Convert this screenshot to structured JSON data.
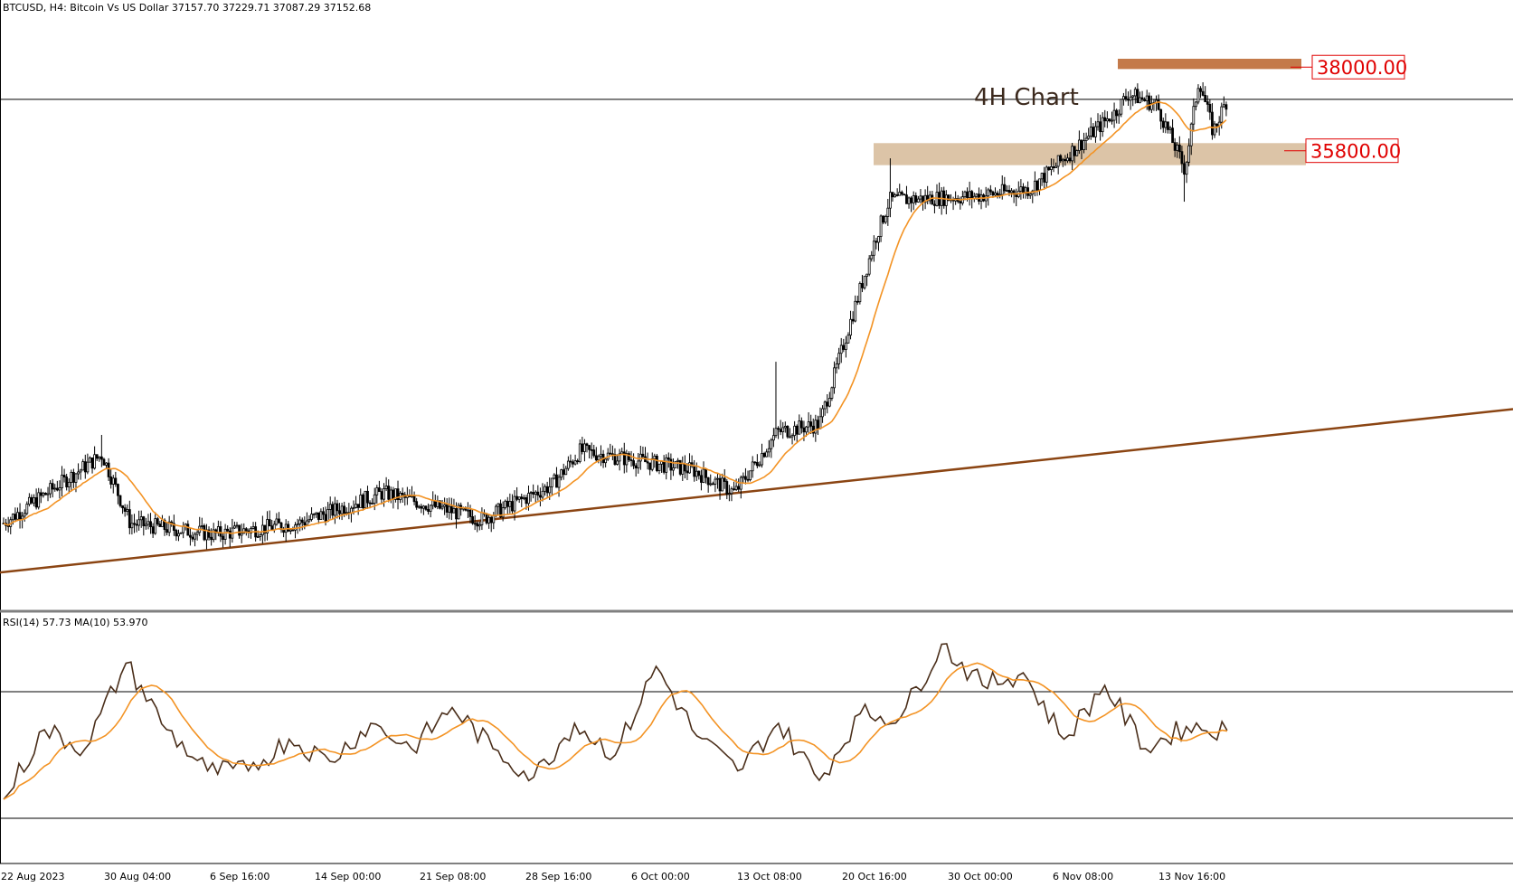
{
  "header": {
    "symbol": "BTCUSD",
    "timeframe": "H4",
    "description": "Bitcoin Vs US Dollar",
    "ohlc": "37157.70 37229.71 37087.29 37152.68",
    "text": "BTCUSD, H4:  Bitcoin Vs US Dollar  37157.70 37229.71 37087.29 37152.68"
  },
  "annotation": {
    "label": "4H Chart"
  },
  "levels": [
    {
      "label": "38000.00",
      "value": 38000,
      "role": "resistance",
      "color": "#c47a4a"
    },
    {
      "label": "35800.00",
      "value": 35800,
      "role": "support",
      "color": "#dcc4a7"
    }
  ],
  "rsi_header": {
    "text": "RSI(14) 57.73 MA(10) 53.970",
    "rsi": 57.73,
    "ma": 53.97
  },
  "time_labels": [
    "22 Aug 2023",
    "30 Aug 04:00",
    "6 Sep 16:00",
    "14 Sep 00:00",
    "21 Sep 08:00",
    "28 Sep 16:00",
    "6 Oct 00:00",
    "13 Oct 08:00",
    "20 Oct 16:00",
    "30 Oct 00:00",
    "6 Nov 08:00",
    "13 Nov 16:00"
  ],
  "colors": {
    "candle": "#000000",
    "ma_line": "#f39324",
    "trendline": "#8b4513",
    "rsi_line": "#4a2e1a",
    "resistance_zone": "#c47a4a",
    "support_zone": "#dcc4a7",
    "label_text": "#e00000"
  },
  "chart_data": [
    {
      "type": "candlestick",
      "title": "BTCUSD, H4: Bitcoin Vs US Dollar",
      "ma_period_note": "moving average overlay (orange)",
      "anchors": [
        {
          "date": "2023-08-22",
          "close": 26000
        },
        {
          "date": "2023-08-29",
          "close": 27800
        },
        {
          "date": "2023-08-31",
          "close": 26000
        },
        {
          "date": "2023-09-06",
          "close": 25700
        },
        {
          "date": "2023-09-12",
          "close": 26000
        },
        {
          "date": "2023-09-18",
          "close": 26800
        },
        {
          "date": "2023-09-25",
          "close": 26100
        },
        {
          "date": "2023-09-30",
          "close": 27000
        },
        {
          "date": "2023-10-02",
          "close": 27900
        },
        {
          "date": "2023-10-10",
          "close": 27400
        },
        {
          "date": "2023-10-13",
          "close": 26800
        },
        {
          "date": "2023-10-16",
          "close": 28400
        },
        {
          "date": "2023-10-19",
          "close": 28600
        },
        {
          "date": "2023-10-20",
          "close": 29800
        },
        {
          "date": "2023-10-23",
          "close": 33500
        },
        {
          "date": "2023-10-24",
          "close": 34500
        },
        {
          "date": "2023-10-30",
          "close": 34600
        },
        {
          "date": "2023-11-03",
          "close": 34800
        },
        {
          "date": "2023-11-09",
          "close": 36800
        },
        {
          "date": "2023-11-10",
          "close": 37300
        },
        {
          "date": "2023-11-12",
          "close": 37000
        },
        {
          "date": "2023-11-14",
          "close": 35300
        },
        {
          "date": "2023-11-15",
          "close": 37700
        },
        {
          "date": "2023-11-16",
          "close": 36300
        },
        {
          "date": "2023-11-17",
          "close": 37152.68
        }
      ],
      "levels": [
        38000,
        35800
      ],
      "trendline": [
        {
          "date": "2023-08-22",
          "value": 24700
        },
        {
          "date": "2023-11-25",
          "value": 29000
        }
      ],
      "ylim": [
        24300,
        39100
      ]
    },
    {
      "type": "line",
      "title": "RSI(14) 57.73 MA(10) 53.970",
      "series": [
        {
          "name": "RSI(14)",
          "values": [
            36,
            58,
            52,
            79,
            58,
            45,
            45,
            55,
            48,
            60,
            52,
            65,
            52,
            43,
            60,
            50,
            78,
            56,
            45,
            60,
            42,
            63,
            62,
            85,
            72,
            76,
            55,
            72,
            52,
            59,
            57.73
          ]
        },
        {
          "name": "MA(10)",
          "value": 53.97
        }
      ],
      "levels": [
        70,
        30
      ],
      "ylim": [
        20,
        90
      ]
    }
  ]
}
